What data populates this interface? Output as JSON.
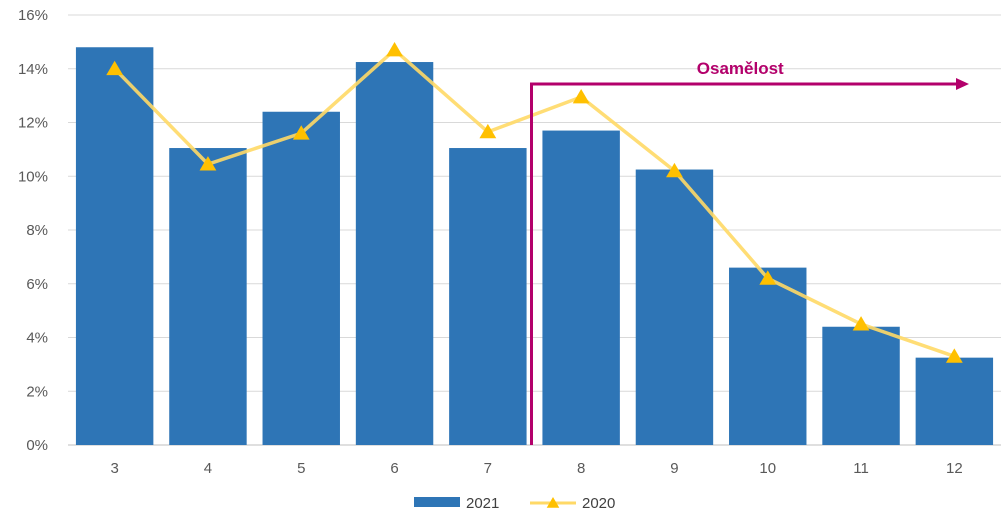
{
  "chart_data": {
    "type": "bar",
    "title": "",
    "xlabel": "",
    "ylabel": "",
    "categories": [
      "3",
      "4",
      "5",
      "6",
      "7",
      "8",
      "9",
      "10",
      "11",
      "12"
    ],
    "ylim": [
      0,
      16
    ],
    "y_ticks": [
      0,
      2,
      4,
      6,
      8,
      10,
      12,
      14,
      16
    ],
    "y_tick_labels": [
      "0%",
      "2%",
      "4%",
      "6%",
      "8%",
      "10%",
      "12%",
      "14%",
      "16%"
    ],
    "grid": true,
    "legend_position": "bottom",
    "series": [
      {
        "name": "2021",
        "type": "bar",
        "color": "#2e75b6",
        "values": [
          14.8,
          11.05,
          12.4,
          14.25,
          11.05,
          11.7,
          10.25,
          6.6,
          4.4,
          3.25
        ]
      },
      {
        "name": "2020",
        "type": "line",
        "marker": "triangle",
        "color": "#ffd966",
        "marker_color": "#ffc000",
        "values": [
          14.0,
          10.45,
          11.6,
          14.7,
          11.65,
          12.95,
          10.2,
          6.2,
          4.5,
          3.3
        ]
      }
    ],
    "annotation": {
      "text": "Osamělost",
      "color": "#b3006b",
      "from_category": "7",
      "to_category": "12",
      "at_value": 13.45,
      "description": "arrow spanning categories 8 to 12"
    }
  }
}
